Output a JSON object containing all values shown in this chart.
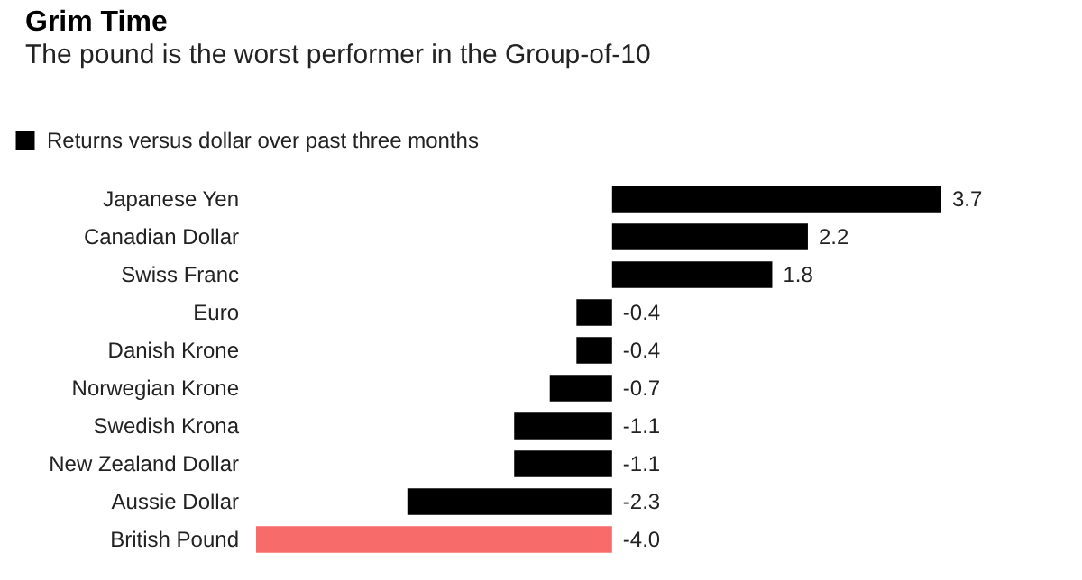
{
  "chart_data": {
    "type": "bar",
    "orientation": "horizontal",
    "title": "Grim Time",
    "subtitle": "The pound is the worst performer in the Group-of-10",
    "categories": [
      "Japanese Yen",
      "Canadian Dollar",
      "Swiss Franc",
      "Euro",
      "Danish Krone",
      "Norwegian Krone",
      "Swedish Krona",
      "New Zealand Dollar",
      "Aussie Dollar",
      "British Pound"
    ],
    "series": [
      {
        "name": "Returns versus dollar over past three months",
        "color": "#000000",
        "colors": [
          "#000000",
          "#000000",
          "#000000",
          "#000000",
          "#000000",
          "#000000",
          "#000000",
          "#000000",
          "#000000",
          "#f86b6b"
        ],
        "values": [
          3.7,
          2.2,
          1.8,
          -0.4,
          -0.4,
          -0.7,
          -1.1,
          -1.1,
          -2.3,
          -4.0
        ],
        "value_labels": [
          "3.7",
          "2.2",
          "1.8",
          "-0.4",
          "-0.4",
          "-0.7",
          "-1.1",
          "-1.1",
          "-2.3",
          "-4.0"
        ]
      }
    ],
    "grid": false,
    "legend": "top left"
  }
}
